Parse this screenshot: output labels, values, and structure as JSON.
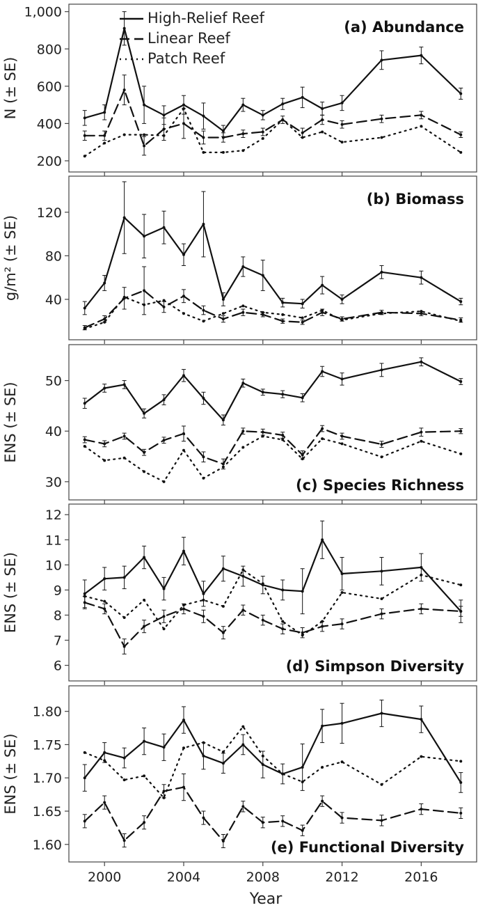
{
  "legend": [
    {
      "key": "hr",
      "label": "High-Relief Reef",
      "dash": "none"
    },
    {
      "key": "lr",
      "label": "Linear Reef",
      "dash": "14,7"
    },
    {
      "key": "pr",
      "label": "Patch Reef",
      "dash": "2,6"
    }
  ],
  "xlabel": "Year",
  "xticks": [
    2000,
    2004,
    2008,
    2012,
    2016
  ],
  "xlim": [
    1998.2,
    2018.8
  ],
  "line_color": "#111111",
  "chart_data": [
    {
      "type": "line",
      "title": "(a) Abundance",
      "ylabel": "N (± SE)",
      "ylim": [
        170,
        1010
      ],
      "yticks": [
        200,
        400,
        600,
        800,
        1000
      ],
      "ytick_labels": [
        "200",
        "400",
        "600",
        "800",
        "1,000"
      ],
      "series": [
        {
          "key": "hr",
          "name": "High-Relief Reef",
          "x": [
            1999,
            2000,
            2001,
            2002,
            2003,
            2004,
            2005,
            2006,
            2007,
            2008,
            2009,
            2010,
            2011,
            2012,
            2014,
            2016,
            2018
          ],
          "y": [
            430,
            460,
            910,
            500,
            445,
            500,
            440,
            360,
            500,
            445,
            505,
            540,
            480,
            510,
            740,
            765,
            560
          ],
          "err": [
            40,
            40,
            90,
            100,
            50,
            50,
            70,
            30,
            35,
            25,
            30,
            55,
            35,
            40,
            50,
            45,
            30
          ]
        },
        {
          "key": "lr",
          "name": "Linear Reef",
          "x": [
            1999,
            2000,
            2001,
            2002,
            2003,
            2004,
            2005,
            2006,
            2007,
            2008,
            2009,
            2010,
            2011,
            2012,
            2014,
            2016,
            2018
          ],
          "y": [
            335,
            335,
            580,
            280,
            370,
            400,
            325,
            325,
            345,
            355,
            420,
            350,
            420,
            395,
            425,
            445,
            340
          ],
          "err": [
            25,
            25,
            80,
            50,
            60,
            80,
            35,
            25,
            20,
            20,
            20,
            25,
            25,
            20,
            20,
            20,
            15
          ]
        },
        {
          "key": "pr",
          "name": "Patch Reef",
          "x": [
            1999,
            2000,
            2001,
            2002,
            2003,
            2004,
            2005,
            2006,
            2007,
            2008,
            2009,
            2010,
            2011,
            2012,
            2014,
            2016,
            2018
          ],
          "y": [
            225,
            295,
            340,
            340,
            335,
            480,
            245,
            245,
            255,
            320,
            420,
            325,
            355,
            300,
            325,
            385,
            245
          ]
        }
      ]
    },
    {
      "type": "line",
      "title": "(b) Biomass",
      "ylabel": "g/m² (± SE)",
      "ylim": [
        8,
        148
      ],
      "yticks": [
        40,
        80,
        120
      ],
      "ytick_labels": [
        "40",
        "80",
        "120"
      ],
      "series": [
        {
          "key": "hr",
          "name": "High-Relief Reef",
          "x": [
            1999,
            2000,
            2001,
            2002,
            2003,
            2004,
            2005,
            2006,
            2007,
            2008,
            2009,
            2010,
            2011,
            2012,
            2014,
            2016,
            2018
          ],
          "y": [
            32,
            55,
            115,
            98,
            106,
            81,
            109,
            40,
            70,
            62,
            37,
            36,
            53,
            40,
            65,
            60,
            38
          ],
          "err": [
            6,
            7,
            33,
            20,
            15,
            10,
            30,
            6,
            9,
            14,
            4,
            4,
            8,
            4,
            6,
            6,
            3
          ]
        },
        {
          "key": "lr",
          "name": "Linear Reef",
          "x": [
            1999,
            2000,
            2001,
            2002,
            2003,
            2004,
            2005,
            2006,
            2007,
            2008,
            2009,
            2010,
            2011,
            2012,
            2014,
            2016,
            2018
          ],
          "y": [
            14,
            22,
            41,
            48,
            33,
            43,
            30,
            22,
            28,
            26,
            20,
            19,
            28,
            22,
            28,
            27,
            21
          ],
          "err": [
            2,
            3,
            10,
            22,
            5,
            6,
            4,
            3,
            3,
            2,
            2,
            2,
            3,
            2,
            2,
            2,
            2
          ]
        },
        {
          "key": "pr",
          "name": "Patch Reef",
          "x": [
            1999,
            2000,
            2001,
            2002,
            2003,
            2004,
            2005,
            2006,
            2007,
            2008,
            2009,
            2010,
            2011,
            2012,
            2014,
            2016,
            2018
          ],
          "y": [
            13,
            19,
            42,
            35,
            39,
            27,
            20,
            27,
            34,
            28,
            26,
            23,
            30,
            21,
            27,
            29,
            20
          ]
        }
      ]
    },
    {
      "type": "line",
      "title": "(c) Species Richness",
      "ylabel": "ENS (± SE)",
      "ylim": [
        27.5,
        56
      ],
      "yticks": [
        30,
        40,
        50
      ],
      "ytick_labels": [
        "30",
        "40",
        "50"
      ],
      "series": [
        {
          "key": "hr",
          "name": "High-Relief Reef",
          "x": [
            1999,
            2000,
            2001,
            2002,
            2003,
            2004,
            2005,
            2006,
            2007,
            2008,
            2009,
            2010,
            2011,
            2012,
            2014,
            2016,
            2018
          ],
          "y": [
            45.5,
            48.5,
            49.2,
            43.5,
            46.2,
            51.0,
            46.5,
            42.2,
            49.5,
            47.7,
            47.3,
            46.6,
            51.8,
            50.3,
            52.1,
            53.7,
            49.8
          ],
          "err": [
            1.0,
            0.8,
            0.8,
            0.9,
            1.0,
            1.2,
            1.2,
            1.0,
            0.8,
            0.6,
            0.7,
            0.8,
            1.0,
            1.2,
            1.3,
            0.8,
            0.6
          ]
        },
        {
          "key": "lr",
          "name": "Linear Reef",
          "x": [
            1999,
            2000,
            2001,
            2002,
            2003,
            2004,
            2005,
            2006,
            2007,
            2008,
            2009,
            2010,
            2011,
            2012,
            2014,
            2016,
            2018
          ],
          "y": [
            38.3,
            37.5,
            39.0,
            35.8,
            38.2,
            39.5,
            34.9,
            33.5,
            40.0,
            39.8,
            39.2,
            35.3,
            40.5,
            39.0,
            37.4,
            39.8,
            40.0
          ],
          "err": [
            0.6,
            0.6,
            0.6,
            0.6,
            0.6,
            1.5,
            1.0,
            1.0,
            0.6,
            0.6,
            0.6,
            0.8,
            0.6,
            0.6,
            0.6,
            0.8,
            0.5
          ]
        },
        {
          "key": "pr",
          "name": "Patch Reef",
          "x": [
            1999,
            2000,
            2001,
            2002,
            2003,
            2004,
            2005,
            2006,
            2007,
            2008,
            2009,
            2010,
            2011,
            2012,
            2014,
            2016,
            2018
          ],
          "y": [
            37.0,
            34.2,
            34.7,
            32.0,
            30.0,
            36.2,
            30.7,
            32.9,
            36.8,
            39.0,
            38.3,
            34.5,
            38.5,
            37.5,
            34.9,
            38.0,
            35.5
          ]
        }
      ]
    },
    {
      "type": "line",
      "title": "(d) Simpson Diversity",
      "ylabel": "ENS (± SE)",
      "ylim": [
        5.6,
        12.2
      ],
      "yticks": [
        6,
        7,
        8,
        9,
        10,
        11,
        12
      ],
      "ytick_labels": [
        "6",
        "7",
        "8",
        "9",
        "10",
        "11",
        "12"
      ],
      "series": [
        {
          "key": "hr",
          "name": "High-Relief Reef",
          "x": [
            1999,
            2000,
            2001,
            2002,
            2003,
            2004,
            2005,
            2006,
            2007,
            2008,
            2009,
            2010,
            2011,
            2012,
            2014,
            2016,
            2018
          ],
          "y": [
            8.85,
            9.45,
            9.5,
            10.3,
            9.05,
            10.55,
            8.85,
            9.85,
            9.55,
            9.2,
            9.0,
            8.95,
            11.0,
            9.65,
            9.75,
            9.9,
            8.15
          ],
          "err": [
            0.55,
            0.45,
            0.45,
            0.45,
            0.45,
            0.55,
            0.5,
            0.5,
            0.4,
            0.35,
            0.4,
            0.9,
            0.75,
            0.65,
            0.55,
            0.55,
            0.45
          ]
        },
        {
          "key": "lr",
          "name": "Linear Reef",
          "x": [
            1999,
            2000,
            2001,
            2002,
            2003,
            2004,
            2005,
            2006,
            2007,
            2008,
            2009,
            2010,
            2011,
            2012,
            2014,
            2016,
            2018
          ],
          "y": [
            8.5,
            8.25,
            6.75,
            7.55,
            7.95,
            8.25,
            7.95,
            7.3,
            8.2,
            7.8,
            7.45,
            7.3,
            7.55,
            7.65,
            8.05,
            8.25,
            8.15
          ],
          "err": [
            0.25,
            0.2,
            0.3,
            0.25,
            0.25,
            0.2,
            0.25,
            0.25,
            0.2,
            0.2,
            0.2,
            0.2,
            0.2,
            0.2,
            0.2,
            0.2,
            0.2
          ]
        },
        {
          "key": "pr",
          "name": "Patch Reef",
          "x": [
            1999,
            2000,
            2001,
            2002,
            2003,
            2004,
            2005,
            2006,
            2007,
            2008,
            2009,
            2010,
            2011,
            2012,
            2014,
            2016,
            2018
          ],
          "y": [
            8.75,
            8.55,
            7.9,
            8.6,
            7.45,
            8.4,
            8.6,
            8.35,
            9.8,
            9.25,
            7.75,
            7.2,
            7.75,
            8.9,
            8.65,
            9.6,
            9.2
          ]
        }
      ]
    },
    {
      "type": "line",
      "title": "(e) Functional Diversity",
      "ylabel": "ENS (± SE)",
      "ylim": [
        1.582,
        1.83
      ],
      "yticks": [
        1.6,
        1.65,
        1.7,
        1.75,
        1.8
      ],
      "ytick_labels": [
        "1.60",
        "1.65",
        "1.70",
        "1.75",
        "1.80"
      ],
      "series": [
        {
          "key": "hr",
          "name": "High-Relief Reef",
          "x": [
            1999,
            2000,
            2001,
            2002,
            2003,
            2004,
            2005,
            2006,
            2007,
            2008,
            2009,
            2010,
            2011,
            2012,
            2014,
            2016,
            2018
          ],
          "y": [
            1.7,
            1.738,
            1.73,
            1.755,
            1.746,
            1.787,
            1.733,
            1.722,
            1.75,
            1.72,
            1.706,
            1.716,
            1.778,
            1.782,
            1.797,
            1.788,
            1.693
          ],
          "err": [
            0.02,
            0.015,
            0.015,
            0.02,
            0.02,
            0.02,
            0.02,
            0.015,
            0.015,
            0.02,
            0.015,
            0.035,
            0.025,
            0.03,
            0.02,
            0.02,
            0.015
          ]
        },
        {
          "key": "lr",
          "name": "Linear Reef",
          "x": [
            1999,
            2000,
            2001,
            2002,
            2003,
            2004,
            2005,
            2006,
            2007,
            2008,
            2009,
            2010,
            2011,
            2012,
            2014,
            2016,
            2018
          ],
          "y": [
            1.635,
            1.663,
            1.606,
            1.633,
            1.68,
            1.686,
            1.64,
            1.605,
            1.657,
            1.633,
            1.635,
            1.621,
            1.665,
            1.64,
            1.636,
            1.653,
            1.647
          ],
          "err": [
            0.01,
            0.01,
            0.01,
            0.01,
            0.01,
            0.02,
            0.01,
            0.01,
            0.008,
            0.008,
            0.008,
            0.008,
            0.008,
            0.008,
            0.008,
            0.008,
            0.008
          ]
        },
        {
          "key": "pr",
          "name": "Patch Reef",
          "x": [
            1999,
            2000,
            2001,
            2002,
            2003,
            2004,
            2005,
            2006,
            2007,
            2008,
            2009,
            2010,
            2011,
            2012,
            2014,
            2016,
            2018
          ],
          "y": [
            1.738,
            1.726,
            1.697,
            1.703,
            1.67,
            1.745,
            1.753,
            1.739,
            1.777,
            1.733,
            1.706,
            1.694,
            1.716,
            1.724,
            1.69,
            1.732,
            1.725
          ]
        }
      ]
    }
  ]
}
